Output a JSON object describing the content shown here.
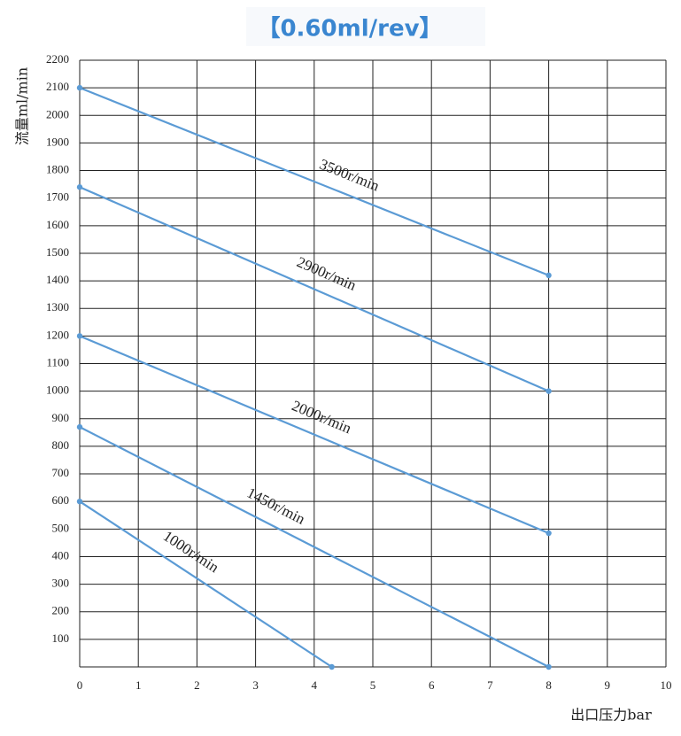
{
  "chart_data": {
    "type": "line",
    "title": "【0.60ml/rev】",
    "x_label": "出口压力bar",
    "y_label": "流量ml/min",
    "xlim": [
      0,
      10
    ],
    "xticks": [
      0,
      1,
      2,
      3,
      4,
      5,
      6,
      7,
      8,
      9,
      10
    ],
    "ylim": [
      0,
      2200
    ],
    "yticks": [
      100,
      200,
      300,
      400,
      500,
      600,
      700,
      800,
      900,
      1000,
      1100,
      1200,
      1300,
      1400,
      1500,
      1600,
      1700,
      1800,
      1900,
      2000,
      2100,
      2200
    ],
    "grid": true,
    "series": [
      {
        "name": "3500r/min",
        "color": "#5b9bd5",
        "x": [
          0,
          8
        ],
        "values": [
          2100,
          1420
        ]
      },
      {
        "name": "2900r/min",
        "color": "#5b9bd5",
        "x": [
          0,
          8
        ],
        "values": [
          1740,
          1000
        ]
      },
      {
        "name": "2000r/min",
        "color": "#5b9bd5",
        "x": [
          0,
          8
        ],
        "values": [
          1200,
          485
        ]
      },
      {
        "name": "1450r/min",
        "color": "#5b9bd5",
        "x": [
          0,
          8
        ],
        "values": [
          870,
          0
        ]
      },
      {
        "name": "1000r/min",
        "color": "#5b9bd5",
        "x": [
          0,
          4.3
        ],
        "values": [
          600,
          0
        ]
      }
    ]
  }
}
